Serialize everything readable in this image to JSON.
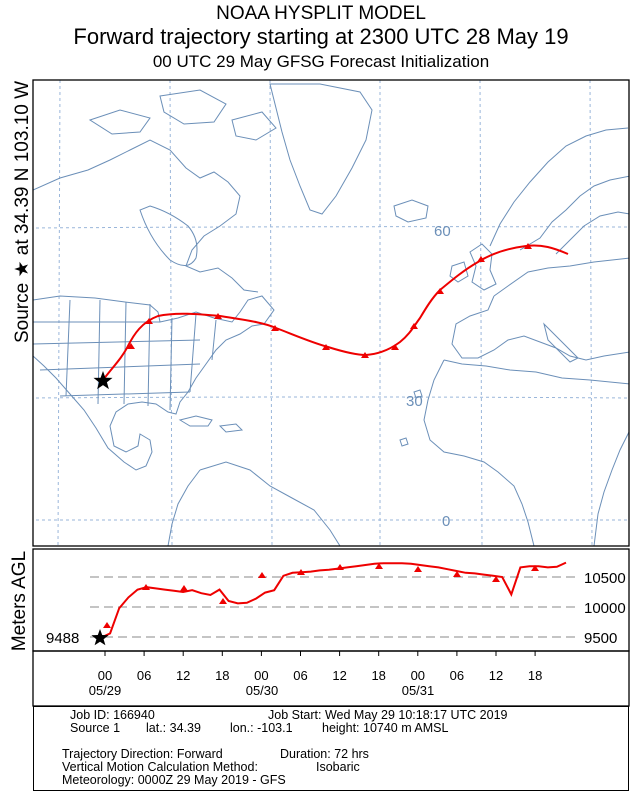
{
  "header": {
    "line1": "NOAA HYSPLIT MODEL",
    "line2": "Forward trajectory starting at 2300 UTC 28 May 19",
    "line3": "00 UTC 29 May    GFSG  Forecast Initialization"
  },
  "side_label": "Source ★ at   34.39 N   103.10 W",
  "height_axis_label": "Meters AGL",
  "map": {
    "lat_labels": [
      "60",
      "30",
      "0"
    ],
    "source_marker": "star-icon",
    "colors": {
      "trajectory": "#ee0000",
      "coast": "#6b8fb8",
      "grid": "#9ab6da"
    }
  },
  "height_panel": {
    "y_ticks": [
      "10500",
      "10000",
      "9500"
    ],
    "start_label": "9488"
  },
  "time_axis": {
    "hours": [
      "00",
      "06",
      "12",
      "18",
      "00",
      "06",
      "12",
      "18",
      "00",
      "06",
      "12",
      "18"
    ],
    "dates": [
      "05/29",
      "05/30",
      "05/31"
    ]
  },
  "info": {
    "job_id": "Job ID: 166940",
    "job_start": "Job Start: Wed May 29 10:18:17 UTC 2019",
    "source": "Source 1",
    "lat": "lat.: 34.39",
    "lon": "lon.: -103.1",
    "height": "height: 10740 m AMSL",
    "direction": "Trajectory Direction: Forward",
    "duration": "Duration: 72 hrs",
    "vertical_method": "Vertical Motion Calculation Method:",
    "vertical_value": "Isobaric",
    "meteorology": "Meteorology: 0000Z 29 May 2019 - GFS"
  },
  "trajectory": {
    "heights_m": [
      9488,
      9560,
      9980,
      10160,
      10290,
      10330,
      10310,
      10290,
      10270,
      10250,
      10280,
      10230,
      10200,
      10290,
      10100,
      10060,
      10070,
      10140,
      10240,
      10280,
      10520,
      10570,
      10580,
      10590,
      10610,
      10620,
      10640,
      10660,
      10680,
      10700,
      10720,
      10730,
      10730,
      10730,
      10720,
      10700,
      10680,
      10660,
      10630,
      10600,
      10570,
      10560,
      10540,
      10520,
      10500,
      10210,
      10660,
      10680,
      10680,
      10660,
      10670,
      10740
    ]
  }
}
